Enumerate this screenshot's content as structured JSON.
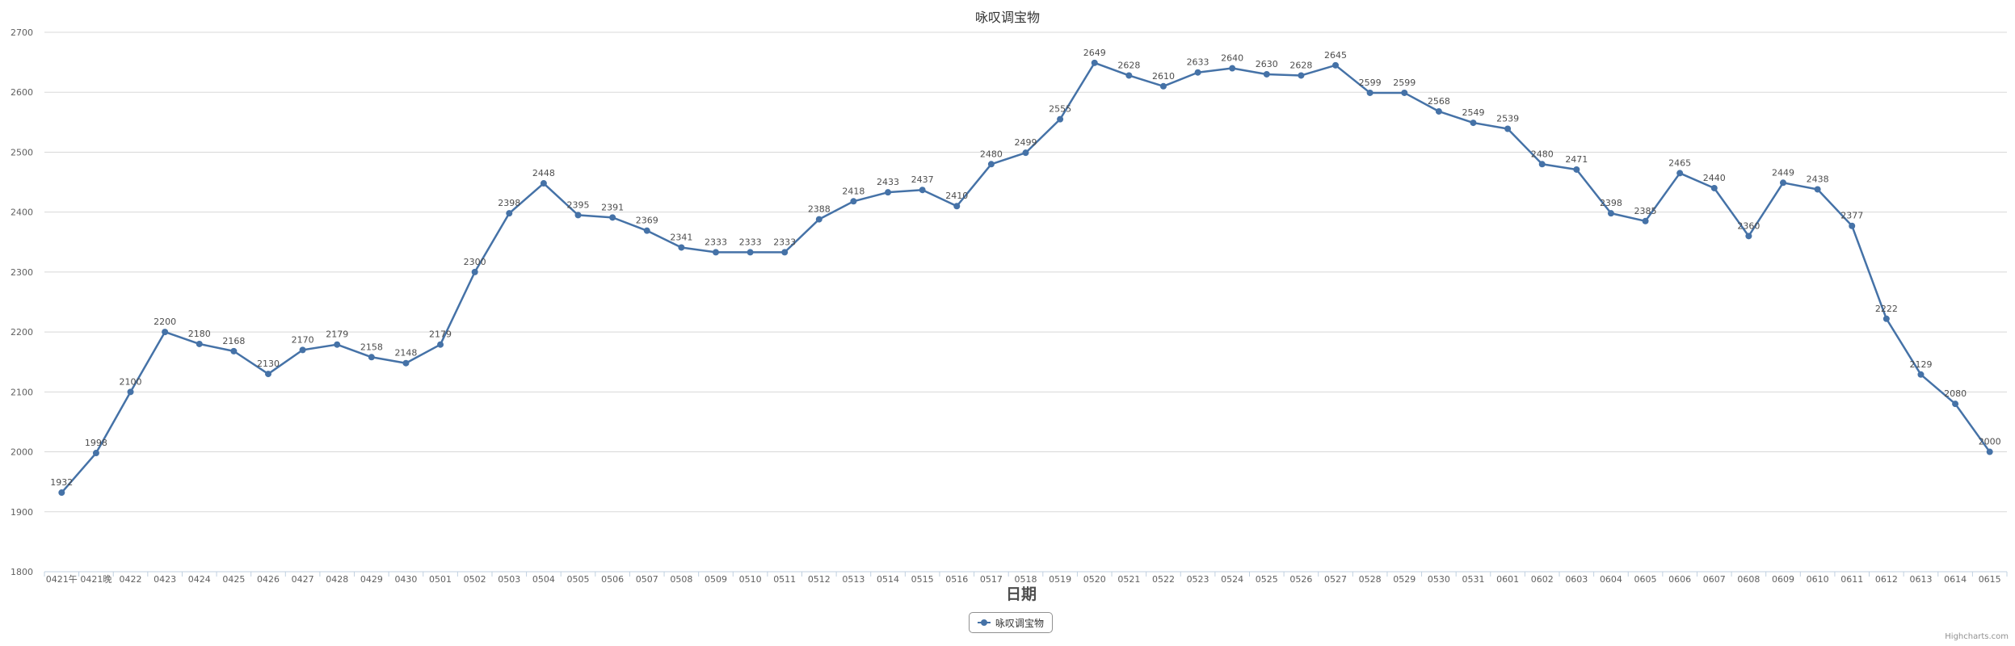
{
  "chart_data": {
    "type": "line",
    "title": "咏叹调宝物",
    "xlabel": "日期",
    "ylabel": "",
    "ylim": [
      1800,
      2700
    ],
    "yticks": [
      1800,
      1900,
      2000,
      2100,
      2200,
      2300,
      2400,
      2500,
      2600,
      2700
    ],
    "grid": true,
    "legend_position": "bottom-center",
    "categories": [
      "0421午",
      "0421晚",
      "0422",
      "0423",
      "0424",
      "0425",
      "0426",
      "0427",
      "0428",
      "0429",
      "0430",
      "0501",
      "0502",
      "0503",
      "0504",
      "0505",
      "0506",
      "0507",
      "0508",
      "0509",
      "0510",
      "0511",
      "0512",
      "0513",
      "0514",
      "0515",
      "0516",
      "0517",
      "0518",
      "0519",
      "0520",
      "0521",
      "0522",
      "0523",
      "0524",
      "0525",
      "0526",
      "0527",
      "0528",
      "0529",
      "0530",
      "0531",
      "0601",
      "0602",
      "0603",
      "0604",
      "0605",
      "0606",
      "0607",
      "0608",
      "0609",
      "0610",
      "0611",
      "0612",
      "0613",
      "0614",
      "0615"
    ],
    "series": [
      {
        "name": "咏叹调宝物",
        "color": "#4572A7",
        "values": [
          1932,
          1998,
          2100,
          2200,
          2180,
          2168,
          2130,
          2170,
          2179,
          2158,
          2148,
          2179,
          2300,
          2398,
          2448,
          2395,
          2391,
          2369,
          2341,
          2333,
          2333,
          2333,
          2388,
          2418,
          2433,
          2437,
          2410,
          2480,
          2499,
          2555,
          2649,
          2628,
          2610,
          2633,
          2640,
          2630,
          2628,
          2645,
          2599,
          2599,
          2568,
          2549,
          2539,
          2480,
          2471,
          2398,
          2385,
          2465,
          2440,
          2360,
          2449,
          2438,
          2377,
          2222,
          2129,
          2080,
          2000
        ]
      }
    ]
  },
  "credit": "Highcharts.com"
}
